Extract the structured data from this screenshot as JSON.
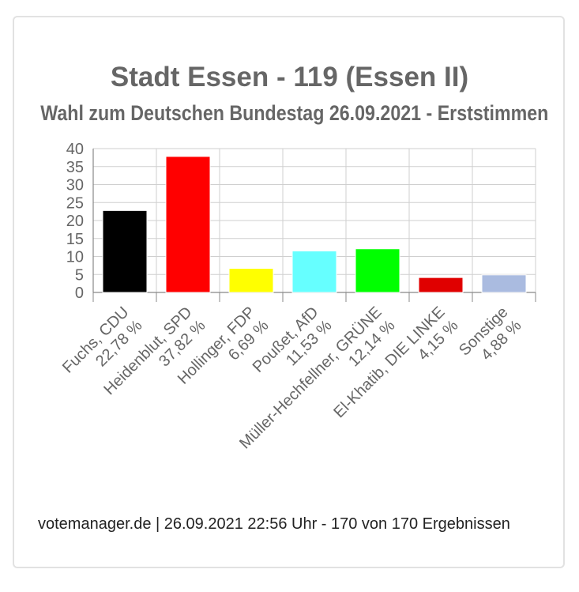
{
  "chart_data": {
    "type": "bar",
    "title": "Stadt Essen - 119 (Essen II)",
    "subtitle": "Wahl zum Deutschen Bundestag 26.09.2021  - Erststimmen",
    "categories": [
      "Fuchs, CDU",
      "Heidenblut, SPD",
      "Hollinger, FDP",
      "Poußet, AfD",
      "Müller-Hechfellner, GRÜNE",
      "El-Khatib, DIE LINKE",
      "Sonstige"
    ],
    "value_labels": [
      "22,78 %",
      "37,82 %",
      "6,69 %",
      "11,53 %",
      "12,14 %",
      "4,15 %",
      "4,88 %"
    ],
    "values": [
      22.78,
      37.82,
      6.69,
      11.53,
      12.14,
      4.15,
      4.88
    ],
    "colors": [
      "#000000",
      "#ff0000",
      "#ffff00",
      "#66ffff",
      "#00ff00",
      "#e00000",
      "#aabbe0"
    ],
    "ylim": [
      0,
      40
    ],
    "yticks": [
      "0",
      "5",
      "10",
      "15",
      "20",
      "25",
      "30",
      "35",
      "40"
    ],
    "grid": true,
    "legend": "none"
  },
  "footer": "votemanager.de | 26.09.2021 22:56 Uhr - 170 von 170 Ergebnissen"
}
